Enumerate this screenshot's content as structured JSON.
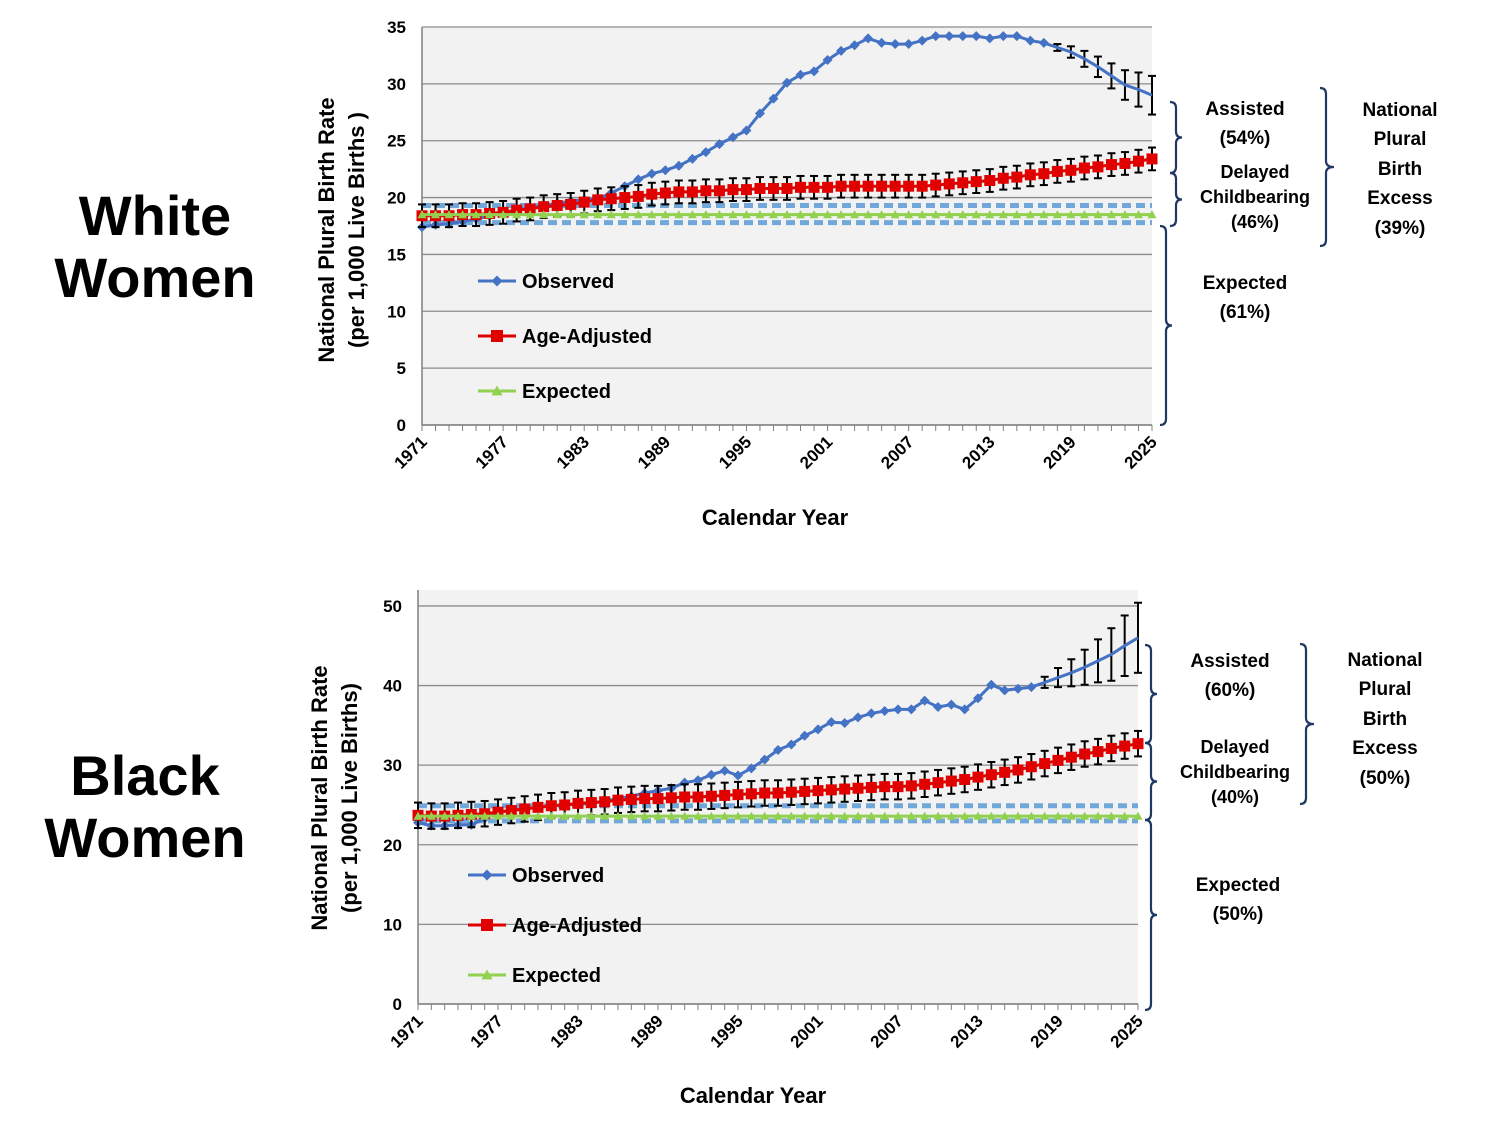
{
  "chart_data": [
    {
      "type": "line",
      "group_label": [
        "White",
        "Women"
      ],
      "ylabel": [
        "National Plural Birth Rate",
        "(per 1,000  Live Births )"
      ],
      "xlabel": "Calendar Year",
      "ylim": [
        0,
        35
      ],
      "yticks": [
        0,
        5,
        10,
        15,
        20,
        25,
        30,
        35
      ],
      "xlim": [
        1971,
        2025
      ],
      "xticks": [
        "1971",
        "1977",
        "1983",
        "1989",
        "1995",
        "2001",
        "2007",
        "2013",
        "2019",
        "2025"
      ],
      "grid": true,
      "legend_position": "left-middle",
      "expected_band": [
        17.8,
        19.3
      ],
      "series": [
        {
          "name": "Observed",
          "color": "#4472C4",
          "marker": "diamond",
          "x": [
            1971,
            1972,
            1973,
            1974,
            1975,
            1976,
            1977,
            1978,
            1979,
            1980,
            1981,
            1982,
            1983,
            1984,
            1985,
            1986,
            1987,
            1988,
            1989,
            1990,
            1991,
            1992,
            1993,
            1994,
            1995,
            1996,
            1997,
            1998,
            1999,
            2000,
            2001,
            2002,
            2003,
            2004,
            2005,
            2006,
            2007,
            2008,
            2009,
            2010,
            2011,
            2012,
            2013,
            2014,
            2015,
            2016,
            2017
          ],
          "y": [
            17.4,
            17.6,
            17.7,
            17.9,
            18.1,
            18.4,
            18.6,
            18.9,
            19.1,
            19.3,
            19.5,
            19.7,
            19.8,
            19.9,
            20.4,
            21.0,
            21.6,
            22.1,
            22.4,
            22.8,
            23.4,
            24.0,
            24.7,
            25.3,
            25.9,
            27.4,
            28.7,
            30.1,
            30.8,
            31.1,
            32.1,
            32.9,
            33.4,
            34.0,
            33.6,
            33.5,
            33.5,
            33.8,
            34.2,
            34.2,
            34.2,
            34.2,
            34.0,
            34.2,
            34.2,
            33.8,
            33.6
          ]
        },
        {
          "name": "Observed (projected)",
          "color": "#4472C4",
          "marker": "none",
          "x": [
            2017,
            2018,
            2019,
            2020,
            2021,
            2022,
            2023,
            2024,
            2025
          ],
          "y": [
            33.6,
            33.2,
            32.8,
            32.2,
            31.5,
            30.7,
            29.9,
            29.5,
            29.0
          ],
          "err": [
            0,
            0.3,
            0.5,
            0.7,
            0.9,
            1.1,
            1.3,
            1.5,
            1.7
          ]
        },
        {
          "name": "Age-Adjusted",
          "color": "#E00000",
          "marker": "square",
          "x": [
            1971,
            1972,
            1973,
            1974,
            1975,
            1976,
            1977,
            1978,
            1979,
            1980,
            1981,
            1982,
            1983,
            1984,
            1985,
            1986,
            1987,
            1988,
            1989,
            1990,
            1991,
            1992,
            1993,
            1994,
            1995,
            1996,
            1997,
            1998,
            1999,
            2000,
            2001,
            2002,
            2003,
            2004,
            2005,
            2006,
            2007,
            2008,
            2009,
            2010,
            2011,
            2012,
            2013,
            2014,
            2015,
            2016,
            2017,
            2018,
            2019,
            2020,
            2021,
            2022,
            2023,
            2024,
            2025
          ],
          "y": [
            18.4,
            18.4,
            18.4,
            18.5,
            18.5,
            18.6,
            18.7,
            18.9,
            19.0,
            19.2,
            19.3,
            19.4,
            19.6,
            19.8,
            19.9,
            20.0,
            20.1,
            20.3,
            20.4,
            20.5,
            20.5,
            20.6,
            20.6,
            20.7,
            20.7,
            20.8,
            20.8,
            20.8,
            20.9,
            20.9,
            20.9,
            21.0,
            21.0,
            21.0,
            21.0,
            21.0,
            21.0,
            21.0,
            21.1,
            21.2,
            21.3,
            21.4,
            21.5,
            21.7,
            21.8,
            22.0,
            22.1,
            22.3,
            22.4,
            22.6,
            22.7,
            22.9,
            23.0,
            23.2,
            23.4
          ],
          "err": 1.0
        },
        {
          "name": "Expected",
          "color": "#92D050",
          "marker": "triangle",
          "x": [
            1971,
            2025
          ],
          "y": [
            18.5,
            18.5
          ]
        }
      ],
      "annotations": [
        {
          "lines": [
            "Assisted",
            "(54%)"
          ]
        },
        {
          "lines": [
            "Delayed",
            "Childbearing",
            "(46%)"
          ]
        },
        {
          "lines": [
            "Expected",
            "(61%)"
          ]
        },
        {
          "lines": [
            "National",
            "Plural",
            "Birth",
            "Excess",
            "(39%)"
          ]
        }
      ]
    },
    {
      "type": "line",
      "group_label": [
        "Black",
        "Women"
      ],
      "ylabel": [
        "National Plural Birth Rate",
        "(per 1,000 Live Births)"
      ],
      "xlabel": "Calendar Year",
      "ylim": [
        0,
        52
      ],
      "yticks": [
        0,
        10,
        20,
        30,
        40,
        50
      ],
      "xlim": [
        1971,
        2025
      ],
      "xticks": [
        "1971",
        "1977",
        "1983",
        "1989",
        "1995",
        "2001",
        "2007",
        "2013",
        "2019",
        "2025"
      ],
      "grid": true,
      "legend_position": "left-middle",
      "expected_band": [
        23.0,
        24.9
      ],
      "series": [
        {
          "name": "Observed",
          "color": "#4472C4",
          "marker": "diamond",
          "x": [
            1971,
            1972,
            1973,
            1974,
            1975,
            1976,
            1977,
            1978,
            1979,
            1980,
            1981,
            1982,
            1983,
            1984,
            1985,
            1986,
            1987,
            1988,
            1989,
            1990,
            1991,
            1992,
            1993,
            1994,
            1995,
            1996,
            1997,
            1998,
            1999,
            2000,
            2001,
            2002,
            2003,
            2004,
            2005,
            2006,
            2007,
            2008,
            2009,
            2010,
            2011,
            2012,
            2013,
            2014,
            2015,
            2016,
            2017
          ],
          "y": [
            22.8,
            22.4,
            22.4,
            22.5,
            22.5,
            23.3,
            24.1,
            24.3,
            24.5,
            24.7,
            24.9,
            25.0,
            25.1,
            25.2,
            25.5,
            25.8,
            26.1,
            26.5,
            26.8,
            27.1,
            27.8,
            28.1,
            28.8,
            29.3,
            28.7,
            29.6,
            30.7,
            31.9,
            32.6,
            33.7,
            34.5,
            35.4,
            35.3,
            36.0,
            36.5,
            36.8,
            37.0,
            37.0,
            38.1,
            37.3,
            37.6,
            37.0,
            38.4,
            40.1,
            39.4,
            39.6,
            39.8
          ]
        },
        {
          "name": "Observed (projected)",
          "color": "#4472C4",
          "marker": "none",
          "x": [
            2017,
            2018,
            2019,
            2020,
            2021,
            2022,
            2023,
            2024,
            2025
          ],
          "y": [
            39.8,
            40.4,
            41.0,
            41.6,
            42.3,
            43.1,
            43.9,
            45.0,
            46.0
          ],
          "err": [
            0,
            0.7,
            1.2,
            1.7,
            2.2,
            2.7,
            3.3,
            3.8,
            4.4
          ]
        },
        {
          "name": "Age-Adjusted",
          "color": "#E00000",
          "marker": "square",
          "x": [
            1971,
            1972,
            1973,
            1974,
            1975,
            1976,
            1977,
            1978,
            1979,
            1980,
            1981,
            1982,
            1983,
            1984,
            1985,
            1986,
            1987,
            1988,
            1989,
            1990,
            1991,
            1992,
            1993,
            1994,
            1995,
            1996,
            1997,
            1998,
            1999,
            2000,
            2001,
            2002,
            2003,
            2004,
            2005,
            2006,
            2007,
            2008,
            2009,
            2010,
            2011,
            2012,
            2013,
            2014,
            2015,
            2016,
            2017,
            2018,
            2019,
            2020,
            2021,
            2022,
            2023,
            2024,
            2025
          ],
          "y": [
            23.7,
            23.6,
            23.6,
            23.7,
            23.8,
            23.9,
            24.1,
            24.3,
            24.5,
            24.7,
            24.9,
            25.0,
            25.2,
            25.3,
            25.4,
            25.6,
            25.7,
            25.8,
            25.8,
            25.9,
            26.0,
            26.0,
            26.1,
            26.2,
            26.3,
            26.4,
            26.5,
            26.5,
            26.6,
            26.7,
            26.8,
            26.9,
            27.0,
            27.1,
            27.2,
            27.3,
            27.3,
            27.4,
            27.6,
            27.8,
            28.0,
            28.2,
            28.5,
            28.8,
            29.1,
            29.4,
            29.8,
            30.2,
            30.6,
            31.0,
            31.4,
            31.7,
            32.1,
            32.4,
            32.7
          ],
          "err": 1.6
        },
        {
          "name": "Expected",
          "color": "#92D050",
          "marker": "triangle",
          "x": [
            1971,
            2025
          ],
          "y": [
            23.6,
            23.6
          ]
        }
      ],
      "annotations": [
        {
          "lines": [
            "Assisted",
            "(60%)"
          ]
        },
        {
          "lines": [
            "Delayed",
            "Childbearing",
            "(40%)"
          ]
        },
        {
          "lines": [
            "Expected",
            "(50%)"
          ]
        },
        {
          "lines": [
            "National",
            "Plural",
            "Birth",
            "Excess",
            "(50%)"
          ]
        }
      ]
    }
  ]
}
